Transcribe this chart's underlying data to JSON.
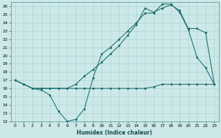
{
  "xlabel": "Humidex (Indice chaleur)",
  "bg_color": "#cde8e8",
  "line_color": "#1e6e6e",
  "grid_color": "#aad4d4",
  "xlim": [
    -0.5,
    23.5
  ],
  "ylim": [
    12,
    26.5
  ],
  "xtick_labels": [
    "0",
    "1",
    "2",
    "3",
    "4",
    "5",
    "6",
    "7",
    "8",
    "9",
    "10",
    "11",
    "12",
    "13",
    "14",
    "15",
    "16",
    "17",
    "18",
    "19",
    "20",
    "21",
    "22",
    "23"
  ],
  "xticks": [
    0,
    1,
    2,
    3,
    4,
    5,
    6,
    7,
    8,
    9,
    10,
    11,
    12,
    13,
    14,
    15,
    16,
    17,
    18,
    19,
    20,
    21,
    22,
    23
  ],
  "yticks": [
    12,
    13,
    14,
    15,
    16,
    17,
    18,
    19,
    20,
    21,
    22,
    23,
    24,
    25,
    26
  ],
  "series": [
    {
      "x": [
        0,
        1,
        2,
        3,
        4,
        5,
        6,
        7,
        8,
        9,
        10,
        11,
        12,
        13,
        14,
        15,
        16,
        17,
        18,
        19,
        20,
        21,
        22,
        23
      ],
      "y": [
        17,
        16.5,
        16,
        15.8,
        15.2,
        13.2,
        12.0,
        12.2,
        13.5,
        17.3,
        20.2,
        21.0,
        22.0,
        23.0,
        24.0,
        25.2,
        25.2,
        26.3,
        26.3,
        25.3,
        23.2,
        19.8,
        18.5,
        16.5
      ]
    },
    {
      "x": [
        0,
        1,
        2,
        3,
        4,
        5,
        6,
        7,
        8,
        9,
        10,
        11,
        12,
        13,
        14,
        15,
        16,
        17,
        18,
        19,
        20,
        21,
        22,
        23
      ],
      "y": [
        17,
        16.5,
        16,
        16,
        16,
        16,
        16,
        16.5,
        17.5,
        18.3,
        19.2,
        20.2,
        21.2,
        22.5,
        23.8,
        25.8,
        25.3,
        25.8,
        26.2,
        25.5,
        23.3,
        23.3,
        22.8,
        16.5
      ]
    },
    {
      "x": [
        0,
        1,
        2,
        3,
        4,
        5,
        6,
        7,
        8,
        9,
        10,
        11,
        12,
        13,
        14,
        15,
        16,
        17,
        18,
        19,
        20,
        21,
        22,
        23
      ],
      "y": [
        17,
        16.5,
        16,
        16,
        16,
        16,
        16,
        16,
        16,
        16,
        16,
        16,
        16,
        16,
        16,
        16,
        16.2,
        16.5,
        16.5,
        16.5,
        16.5,
        16.5,
        16.5,
        16.5
      ]
    }
  ]
}
